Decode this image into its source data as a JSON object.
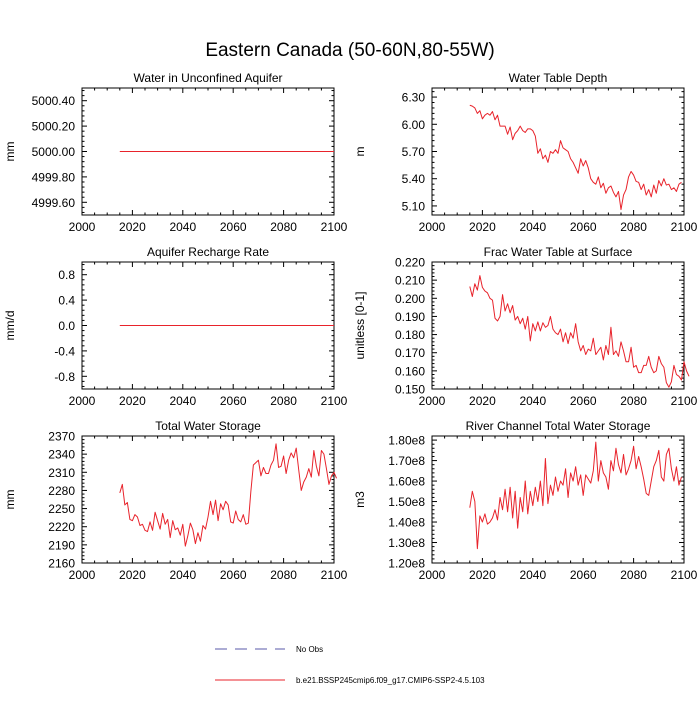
{
  "figure": {
    "title": "Eastern Canada (50-60N,80-55W)"
  },
  "legend": {
    "items": [
      {
        "label": "No Obs",
        "style": "dashed",
        "color": "#5a5aa8"
      },
      {
        "label": "b.e21.BSSP245cmip6.f09_g17.CMIP6-SSP2-4.5.103",
        "style": "solid",
        "color": "#e8232b"
      }
    ]
  },
  "chart_data": [
    {
      "id": "p1",
      "type": "line",
      "title": "Water in Unconfined Aquifer",
      "ylabel": "mm",
      "xlim": [
        2000,
        2100
      ],
      "ylim": [
        4999.5,
        5000.5
      ],
      "xticks": [
        2000,
        2020,
        2040,
        2060,
        2080,
        2100
      ],
      "yticks": [
        4999.6,
        4999.8,
        5000.0,
        5000.2,
        5000.4
      ],
      "ytick_labels": [
        "4999.60",
        "4999.80",
        "5000.00",
        "5000.20",
        "5000.40"
      ],
      "x_start": 2015,
      "x_step": 1,
      "values": [
        5000,
        5000,
        5000,
        5000,
        5000,
        5000,
        5000,
        5000,
        5000,
        5000,
        5000,
        5000,
        5000,
        5000,
        5000,
        5000,
        5000,
        5000,
        5000,
        5000,
        5000,
        5000,
        5000,
        5000,
        5000,
        5000,
        5000,
        5000,
        5000,
        5000,
        5000,
        5000,
        5000,
        5000,
        5000,
        5000,
        5000,
        5000,
        5000,
        5000,
        5000,
        5000,
        5000,
        5000,
        5000,
        5000,
        5000,
        5000,
        5000,
        5000,
        5000,
        5000,
        5000,
        5000,
        5000,
        5000,
        5000,
        5000,
        5000,
        5000,
        5000,
        5000,
        5000,
        5000,
        5000,
        5000,
        5000,
        5000,
        5000,
        5000,
        5000,
        5000,
        5000,
        5000,
        5000,
        5000,
        5000,
        5000,
        5000,
        5000,
        5000,
        5000,
        5000,
        5000,
        5000,
        5000
      ]
    },
    {
      "id": "p2",
      "type": "line",
      "title": "Water Table Depth",
      "ylabel": "m",
      "xlim": [
        2000,
        2100
      ],
      "ylim": [
        5.0,
        6.4
      ],
      "xticks": [
        2000,
        2020,
        2040,
        2060,
        2080,
        2100
      ],
      "yticks": [
        5.1,
        5.4,
        5.7,
        6.0,
        6.3
      ],
      "ytick_labels": [
        "5.10",
        "5.40",
        "5.70",
        "6.00",
        "6.30"
      ],
      "x_start": 2015,
      "x_step": 1,
      "values": [
        6.21,
        6.2,
        6.18,
        6.12,
        6.15,
        6.06,
        6.1,
        6.12,
        6.1,
        6.14,
        6.05,
        6.1,
        5.98,
        5.98,
        5.98,
        5.89,
        5.97,
        5.83,
        5.9,
        5.93,
        5.98,
        5.93,
        5.91,
        5.95,
        5.95,
        5.93,
        5.87,
        5.68,
        5.73,
        5.62,
        5.66,
        5.58,
        5.7,
        5.68,
        5.72,
        5.68,
        5.82,
        5.74,
        5.72,
        5.7,
        5.62,
        5.58,
        5.52,
        5.46,
        5.62,
        5.54,
        5.6,
        5.52,
        5.4,
        5.36,
        5.34,
        5.42,
        5.3,
        5.35,
        5.24,
        5.3,
        5.32,
        5.25,
        5.2,
        5.26,
        5.06,
        5.22,
        5.28,
        5.42,
        5.48,
        5.44,
        5.37,
        5.36,
        5.28,
        5.34,
        5.22,
        5.28,
        5.2,
        5.33,
        5.24,
        5.38,
        5.32,
        5.4,
        5.33,
        5.34,
        5.28,
        5.3,
        5.26,
        5.34,
        5.36
      ]
    },
    {
      "id": "p3",
      "type": "line",
      "title": "Aquifer Recharge Rate",
      "ylabel": "mm/d",
      "xlim": [
        2000,
        2100
      ],
      "ylim": [
        -1.0,
        1.0
      ],
      "xticks": [
        2000,
        2020,
        2040,
        2060,
        2080,
        2100
      ],
      "yticks": [
        -0.8,
        -0.4,
        0.0,
        0.4,
        0.8
      ],
      "ytick_labels": [
        "-0.8",
        "-0.4",
        "0.0",
        "0.4",
        "0.8"
      ],
      "x_start": 2015,
      "x_step": 1,
      "values": [
        0,
        0,
        0,
        0,
        0,
        0,
        0,
        0,
        0,
        0,
        0,
        0,
        0,
        0,
        0,
        0,
        0,
        0,
        0,
        0,
        0,
        0,
        0,
        0,
        0,
        0,
        0,
        0,
        0,
        0,
        0,
        0,
        0,
        0,
        0,
        0,
        0,
        0,
        0,
        0,
        0,
        0,
        0,
        0,
        0,
        0,
        0,
        0,
        0,
        0,
        0,
        0,
        0,
        0,
        0,
        0,
        0,
        0,
        0,
        0,
        0,
        0,
        0,
        0,
        0,
        0,
        0,
        0,
        0,
        0,
        0,
        0,
        0,
        0,
        0,
        0,
        0,
        0,
        0,
        0,
        0,
        0,
        0,
        0,
        0,
        0
      ]
    },
    {
      "id": "p4",
      "type": "line",
      "title": "Frac Water Table at Surface",
      "ylabel": "unitless [0-1]",
      "xlim": [
        2000,
        2100
      ],
      "ylim": [
        0.15,
        0.22
      ],
      "xticks": [
        2000,
        2020,
        2040,
        2060,
        2080,
        2100
      ],
      "yticks": [
        0.15,
        0.16,
        0.17,
        0.18,
        0.19,
        0.2,
        0.21,
        0.22
      ],
      "ytick_labels": [
        "0.150",
        "0.160",
        "0.170",
        "0.180",
        "0.190",
        "0.200",
        "0.210",
        "0.220"
      ],
      "x_start": 2015,
      "x_step": 1,
      "values": [
        0.2065,
        0.201,
        0.208,
        0.2045,
        0.2125,
        0.206,
        0.204,
        0.203,
        0.2,
        0.199,
        0.189,
        0.1875,
        0.19,
        0.202,
        0.193,
        0.197,
        0.192,
        0.196,
        0.188,
        0.19,
        0.186,
        0.189,
        0.183,
        0.19,
        0.1765,
        0.186,
        0.182,
        0.187,
        0.182,
        0.1865,
        0.184,
        0.185,
        0.19,
        0.183,
        0.181,
        0.18,
        0.183,
        0.176,
        0.181,
        0.175,
        0.181,
        0.178,
        0.186,
        0.176,
        0.171,
        0.174,
        0.169,
        0.172,
        0.171,
        0.178,
        0.169,
        0.171,
        0.173,
        0.166,
        0.174,
        0.169,
        0.184,
        0.169,
        0.171,
        0.168,
        0.176,
        0.171,
        0.165,
        0.165,
        0.173,
        0.162,
        0.163,
        0.159,
        0.159,
        0.163,
        0.163,
        0.168,
        0.162,
        0.159,
        0.16,
        0.168,
        0.164,
        0.162,
        0.1535,
        0.151,
        0.154,
        0.163,
        0.158,
        0.157,
        0.155,
        0.165,
        0.16,
        0.157
      ]
    },
    {
      "id": "p5",
      "type": "line",
      "title": "Total Water Storage",
      "ylabel": "mm",
      "xlim": [
        2000,
        2100
      ],
      "ylim": [
        2160,
        2370
      ],
      "xticks": [
        2000,
        2020,
        2040,
        2060,
        2080,
        2100
      ],
      "yticks": [
        2160,
        2190,
        2220,
        2250,
        2280,
        2310,
        2340,
        2370
      ],
      "ytick_labels": [
        "2160",
        "2190",
        "2220",
        "2250",
        "2280",
        "2310",
        "2340",
        "2370"
      ],
      "x_start": 2015,
      "x_step": 1,
      "values": [
        2276,
        2290,
        2256,
        2260,
        2232,
        2230,
        2240,
        2236,
        2222,
        2224,
        2214,
        2212,
        2228,
        2214,
        2244,
        2230,
        2216,
        2242,
        2224,
        2232,
        2202,
        2230,
        2215,
        2218,
        2206,
        2224,
        2188,
        2205,
        2226,
        2215,
        2192,
        2210,
        2196,
        2222,
        2216,
        2236,
        2262,
        2240,
        2264,
        2230,
        2258,
        2248,
        2262,
        2256,
        2228,
        2226,
        2246,
        2232,
        2228,
        2240,
        2224,
        2226,
        2278,
        2322,
        2326,
        2330,
        2304,
        2318,
        2308,
        2308,
        2322,
        2330,
        2357,
        2318,
        2320,
        2337,
        2308,
        2330,
        2342,
        2334,
        2350,
        2314,
        2280,
        2294,
        2302,
        2316,
        2302,
        2346,
        2320,
        2304,
        2346,
        2340,
        2316,
        2290,
        2304,
        2310,
        2300
      ]
    },
    {
      "id": "p6",
      "type": "line",
      "title": "River Channel Total Water Storage",
      "ylabel": "m3",
      "xlim": [
        2000,
        2100
      ],
      "ylim": [
        120000000.0,
        182000000.0
      ],
      "xticks": [
        2000,
        2020,
        2040,
        2060,
        2080,
        2100
      ],
      "yticks": [
        120000000.0,
        130000000.0,
        140000000.0,
        150000000.0,
        160000000.0,
        170000000.0,
        180000000.0
      ],
      "ytick_labels": [
        "1.20e8",
        "1.30e8",
        "1.40e8",
        "1.50e8",
        "1.60e8",
        "1.70e8",
        "1.80e8"
      ],
      "x_start": 2015,
      "x_step": 1,
      "values": [
        147000000.0,
        155000000.0,
        150000000.0,
        127000000.0,
        143000000.0,
        140000000.0,
        144000000.0,
        139000000.0,
        140000000.0,
        142000000.0,
        146000000.0,
        141000000.0,
        152000000.0,
        146000000.0,
        156000000.0,
        145000000.0,
        157000000.0,
        142000000.0,
        155000000.0,
        137000000.0,
        152000000.0,
        145000000.0,
        160000000.0,
        144000000.0,
        155000000.0,
        148000000.0,
        157000000.0,
        150000000.0,
        160000000.0,
        148000000.0,
        171000000.0,
        149000000.0,
        158000000.0,
        153000000.0,
        162000000.0,
        155000000.0,
        160000000.0,
        158000000.0,
        166000000.0,
        152000000.0,
        164000000.0,
        160000000.0,
        167000000.0,
        158000000.0,
        163000000.0,
        153000000.0,
        163000000.0,
        161000000.0,
        159000000.0,
        165000000.0,
        179000000.0,
        160000000.0,
        170000000.0,
        164000000.0,
        162000000.0,
        156000000.0,
        170000000.0,
        165000000.0,
        176000000.0,
        168000000.0,
        164000000.0,
        173000000.0,
        163000000.0,
        166000000.0,
        170000000.0,
        177000000.0,
        166000000.0,
        172000000.0,
        167000000.0,
        161000000.0,
        154000000.0,
        153000000.0,
        160000000.0,
        167000000.0,
        170000000.0,
        175000000.0,
        162000000.0,
        160000000.0,
        173000000.0,
        176000000.0,
        166000000.0,
        160000000.0,
        167000000.0,
        158000000.0,
        162000000.0
      ]
    }
  ]
}
